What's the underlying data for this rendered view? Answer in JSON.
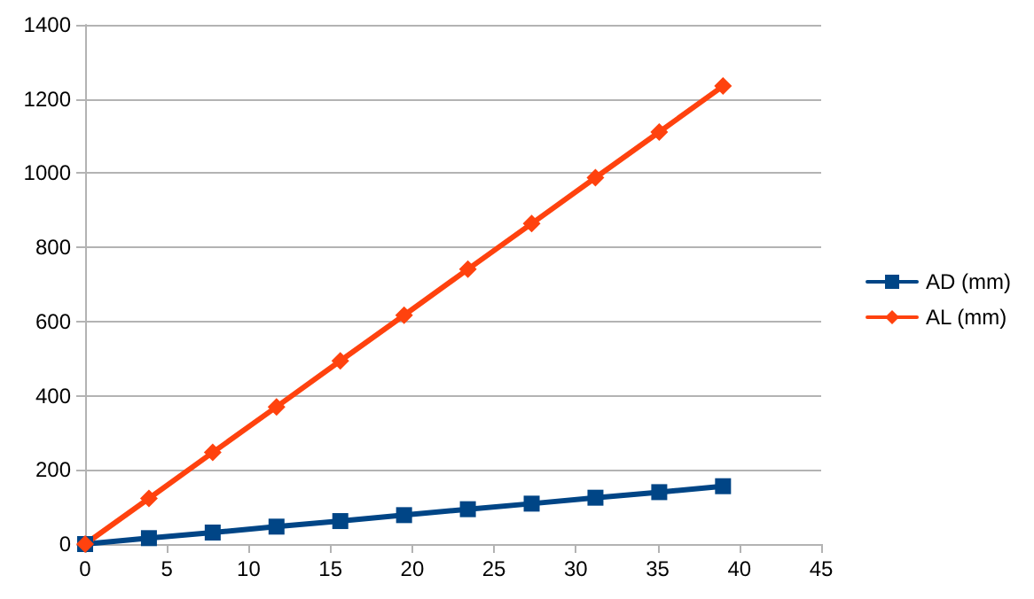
{
  "chart_data": {
    "type": "line",
    "x": [
      0,
      3.9,
      7.8,
      11.7,
      15.6,
      19.5,
      23.4,
      27.3,
      31.2,
      35.1,
      39
    ],
    "series": [
      {
        "name": "AD (mm)",
        "color": "#004586",
        "marker": "square",
        "values": [
          0,
          16,
          31,
          47,
          62,
          78,
          94,
          109,
          125,
          140,
          156
        ]
      },
      {
        "name": "AL (mm)",
        "color": "#ff420e",
        "marker": "diamond",
        "values": [
          0,
          123,
          247,
          370,
          494,
          617,
          741,
          864,
          988,
          1111,
          1235
        ]
      }
    ],
    "xlim": [
      0,
      45
    ],
    "xticks": [
      0,
      5,
      10,
      15,
      20,
      25,
      30,
      35,
      40,
      45
    ],
    "ylim": [
      0,
      1400
    ],
    "yticks": [
      0,
      200,
      400,
      600,
      800,
      1000,
      1200,
      1400
    ],
    "grid": "y",
    "legend": "right",
    "line_style": "solid"
  }
}
